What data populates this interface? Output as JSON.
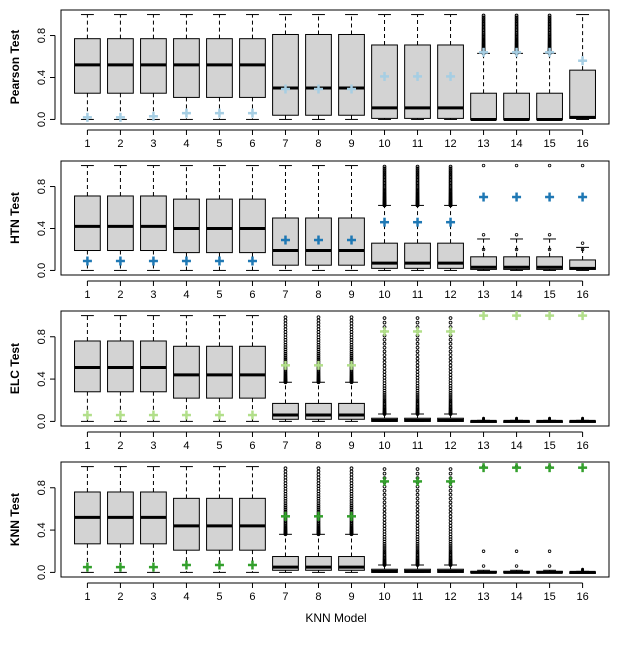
{
  "figure": {
    "xlabel": "KNN Model",
    "colors": {
      "box_fill": "#d3d3d3",
      "outline": "#000000",
      "background": "#ffffff"
    }
  },
  "chart_data": [
    {
      "type": "boxplot",
      "ylabel": "Pearson Test",
      "ylim": [
        0,
        1
      ],
      "yticks": [
        "0.0",
        "0.4",
        "0.8"
      ],
      "ytick_values": [
        0,
        0.4,
        0.8
      ],
      "categories": [
        "1",
        "2",
        "3",
        "4",
        "5",
        "6",
        "7",
        "8",
        "9",
        "10",
        "11",
        "12",
        "13",
        "14",
        "15",
        "16"
      ],
      "marker_color": "#a6cee3",
      "boxes": [
        {
          "whislo": 0,
          "q1": 0.25,
          "med": 0.52,
          "q3": 0.77,
          "whishi": 1,
          "fliers": "none",
          "mark": 0.02
        },
        {
          "whislo": 0,
          "q1": 0.25,
          "med": 0.52,
          "q3": 0.77,
          "whishi": 1,
          "fliers": "none",
          "mark": 0.02
        },
        {
          "whislo": 0,
          "q1": 0.25,
          "med": 0.52,
          "q3": 0.77,
          "whishi": 1,
          "fliers": "none",
          "mark": 0.03
        },
        {
          "whislo": 0,
          "q1": 0.21,
          "med": 0.52,
          "q3": 0.77,
          "whishi": 1,
          "fliers": "none",
          "mark": 0.06
        },
        {
          "whislo": 0,
          "q1": 0.21,
          "med": 0.52,
          "q3": 0.77,
          "whishi": 1,
          "fliers": "none",
          "mark": 0.06
        },
        {
          "whislo": 0,
          "q1": 0.21,
          "med": 0.52,
          "q3": 0.77,
          "whishi": 1,
          "fliers": "none",
          "mark": 0.06
        },
        {
          "whislo": 0,
          "q1": 0.04,
          "med": 0.3,
          "q3": 0.81,
          "whishi": 1,
          "fliers": "none",
          "mark": 0.29
        },
        {
          "whislo": 0,
          "q1": 0.04,
          "med": 0.3,
          "q3": 0.81,
          "whishi": 1,
          "fliers": "none",
          "mark": 0.29
        },
        {
          "whislo": 0,
          "q1": 0.04,
          "med": 0.3,
          "q3": 0.81,
          "whishi": 1,
          "fliers": "none",
          "mark": 0.29
        },
        {
          "whislo": 0,
          "q1": 0.01,
          "med": 0.11,
          "q3": 0.71,
          "whishi": 1,
          "fliers": "none",
          "mark": 0.41
        },
        {
          "whislo": 0,
          "q1": 0.01,
          "med": 0.11,
          "q3": 0.71,
          "whishi": 1,
          "fliers": "none",
          "mark": 0.41
        },
        {
          "whislo": 0,
          "q1": 0.01,
          "med": 0.11,
          "q3": 0.71,
          "whishi": 1,
          "fliers": "none",
          "mark": 0.41
        },
        {
          "whislo": 0,
          "q1": 0,
          "med": 0,
          "q3": 0.25,
          "whishi": 0.63,
          "fliers": "dense",
          "mark": 0.64
        },
        {
          "whislo": 0,
          "q1": 0,
          "med": 0,
          "q3": 0.25,
          "whishi": 0.63,
          "fliers": "dense",
          "mark": 0.64
        },
        {
          "whislo": 0,
          "q1": 0,
          "med": 0,
          "q3": 0.25,
          "whishi": 0.63,
          "fliers": "dense",
          "mark": 0.64
        },
        {
          "whislo": 0,
          "q1": 0.01,
          "med": 0.02,
          "q3": 0.47,
          "whishi": 1,
          "fliers": "none",
          "mark": 0.56
        }
      ]
    },
    {
      "type": "boxplot",
      "ylabel": "HTN Test",
      "ylim": [
        0,
        1
      ],
      "yticks": [
        "0.0",
        "0.4",
        "0.8"
      ],
      "ytick_values": [
        0,
        0.4,
        0.8
      ],
      "categories": [
        "1",
        "2",
        "3",
        "4",
        "5",
        "6",
        "7",
        "8",
        "9",
        "10",
        "11",
        "12",
        "13",
        "14",
        "15",
        "16"
      ],
      "marker_color": "#1f78b4",
      "boxes": [
        {
          "whislo": 0,
          "q1": 0.19,
          "med": 0.42,
          "q3": 0.71,
          "whishi": 1,
          "fliers": "none",
          "mark": 0.09
        },
        {
          "whislo": 0,
          "q1": 0.19,
          "med": 0.42,
          "q3": 0.71,
          "whishi": 1,
          "fliers": "none",
          "mark": 0.09
        },
        {
          "whislo": 0,
          "q1": 0.19,
          "med": 0.42,
          "q3": 0.71,
          "whishi": 1,
          "fliers": "none",
          "mark": 0.09
        },
        {
          "whislo": 0,
          "q1": 0.17,
          "med": 0.4,
          "q3": 0.68,
          "whishi": 1,
          "fliers": "none",
          "mark": 0.09
        },
        {
          "whislo": 0,
          "q1": 0.17,
          "med": 0.4,
          "q3": 0.68,
          "whishi": 1,
          "fliers": "none",
          "mark": 0.09
        },
        {
          "whislo": 0,
          "q1": 0.17,
          "med": 0.4,
          "q3": 0.68,
          "whishi": 1,
          "fliers": "none",
          "mark": 0.09
        },
        {
          "whislo": 0,
          "q1": 0.05,
          "med": 0.19,
          "q3": 0.5,
          "whishi": 1,
          "fliers": "none",
          "mark": 0.29
        },
        {
          "whislo": 0,
          "q1": 0.05,
          "med": 0.19,
          "q3": 0.5,
          "whishi": 1,
          "fliers": "none",
          "mark": 0.29
        },
        {
          "whislo": 0,
          "q1": 0.05,
          "med": 0.19,
          "q3": 0.5,
          "whishi": 1,
          "fliers": "none",
          "mark": 0.29
        },
        {
          "whislo": 0,
          "q1": 0.02,
          "med": 0.07,
          "q3": 0.26,
          "whishi": 0.62,
          "fliers": "dense",
          "mark": 0.46
        },
        {
          "whislo": 0,
          "q1": 0.02,
          "med": 0.07,
          "q3": 0.26,
          "whishi": 0.62,
          "fliers": "dense",
          "mark": 0.46
        },
        {
          "whislo": 0,
          "q1": 0.02,
          "med": 0.07,
          "q3": 0.26,
          "whishi": 0.62,
          "fliers": "dense",
          "mark": 0.46
        },
        {
          "whislo": 0,
          "q1": 0.01,
          "med": 0.03,
          "q3": 0.13,
          "whishi": 0.3,
          "fliers": "sparse",
          "mark": 0.7
        },
        {
          "whislo": 0,
          "q1": 0.01,
          "med": 0.03,
          "q3": 0.13,
          "whishi": 0.3,
          "fliers": "sparse",
          "mark": 0.7
        },
        {
          "whislo": 0,
          "q1": 0.01,
          "med": 0.03,
          "q3": 0.13,
          "whishi": 0.3,
          "fliers": "sparse",
          "mark": 0.7
        },
        {
          "whislo": 0,
          "q1": 0.01,
          "med": 0.02,
          "q3": 0.1,
          "whishi": 0.22,
          "fliers": "sparse",
          "mark": 0.7
        }
      ]
    },
    {
      "type": "boxplot",
      "ylabel": "ELC Test",
      "ylim": [
        0,
        1
      ],
      "yticks": [
        "0.0",
        "0.4",
        "0.8"
      ],
      "ytick_values": [
        0,
        0.4,
        0.8
      ],
      "categories": [
        "1",
        "2",
        "3",
        "4",
        "5",
        "6",
        "7",
        "8",
        "9",
        "10",
        "11",
        "12",
        "13",
        "14",
        "15",
        "16"
      ],
      "marker_color": "#b2df8a",
      "boxes": [
        {
          "whislo": 0,
          "q1": 0.28,
          "med": 0.51,
          "q3": 0.76,
          "whishi": 1,
          "fliers": "none",
          "mark": 0.06
        },
        {
          "whislo": 0,
          "q1": 0.28,
          "med": 0.51,
          "q3": 0.76,
          "whishi": 1,
          "fliers": "none",
          "mark": 0.06
        },
        {
          "whislo": 0,
          "q1": 0.28,
          "med": 0.51,
          "q3": 0.76,
          "whishi": 1,
          "fliers": "none",
          "mark": 0.06
        },
        {
          "whislo": 0,
          "q1": 0.22,
          "med": 0.44,
          "q3": 0.71,
          "whishi": 1,
          "fliers": "none",
          "mark": 0.06
        },
        {
          "whislo": 0,
          "q1": 0.22,
          "med": 0.44,
          "q3": 0.71,
          "whishi": 1,
          "fliers": "none",
          "mark": 0.06
        },
        {
          "whislo": 0,
          "q1": 0.22,
          "med": 0.44,
          "q3": 0.71,
          "whishi": 1,
          "fliers": "none",
          "mark": 0.06
        },
        {
          "whislo": 0,
          "q1": 0.02,
          "med": 0.06,
          "q3": 0.17,
          "whishi": 0.37,
          "fliers": "dense",
          "mark": 0.53
        },
        {
          "whislo": 0,
          "q1": 0.02,
          "med": 0.06,
          "q3": 0.17,
          "whishi": 0.37,
          "fliers": "dense",
          "mark": 0.53
        },
        {
          "whislo": 0,
          "q1": 0.02,
          "med": 0.06,
          "q3": 0.17,
          "whishi": 0.37,
          "fliers": "dense",
          "mark": 0.53
        },
        {
          "whislo": 0,
          "q1": 0,
          "med": 0.01,
          "q3": 0.03,
          "whishi": 0.07,
          "fliers": "dense",
          "mark": 0.85
        },
        {
          "whislo": 0,
          "q1": 0,
          "med": 0.01,
          "q3": 0.03,
          "whishi": 0.07,
          "fliers": "dense",
          "mark": 0.85
        },
        {
          "whislo": 0,
          "q1": 0,
          "med": 0.01,
          "q3": 0.03,
          "whishi": 0.07,
          "fliers": "dense",
          "mark": 0.85
        },
        {
          "whislo": 0,
          "q1": 0,
          "med": 0,
          "q3": 0.005,
          "whishi": 0.01,
          "fliers": "small",
          "mark": 1.0
        },
        {
          "whislo": 0,
          "q1": 0,
          "med": 0,
          "q3": 0.005,
          "whishi": 0.01,
          "fliers": "small",
          "mark": 1.0
        },
        {
          "whislo": 0,
          "q1": 0,
          "med": 0,
          "q3": 0.005,
          "whishi": 0.01,
          "fliers": "small",
          "mark": 1.0
        },
        {
          "whislo": 0,
          "q1": 0,
          "med": 0,
          "q3": 0.005,
          "whishi": 0.01,
          "fliers": "small",
          "mark": 1.0
        }
      ]
    },
    {
      "type": "boxplot",
      "ylabel": "KNN Test",
      "ylim": [
        0,
        1
      ],
      "yticks": [
        "0.0",
        "0.4",
        "0.8"
      ],
      "ytick_values": [
        0,
        0.4,
        0.8
      ],
      "categories": [
        "1",
        "2",
        "3",
        "4",
        "5",
        "6",
        "7",
        "8",
        "9",
        "10",
        "11",
        "12",
        "13",
        "14",
        "15",
        "16"
      ],
      "marker_color": "#33a02c",
      "boxes": [
        {
          "whislo": 0,
          "q1": 0.27,
          "med": 0.52,
          "q3": 0.76,
          "whishi": 1,
          "fliers": "none",
          "mark": 0.05
        },
        {
          "whislo": 0,
          "q1": 0.27,
          "med": 0.52,
          "q3": 0.76,
          "whishi": 1,
          "fliers": "none",
          "mark": 0.05
        },
        {
          "whislo": 0,
          "q1": 0.27,
          "med": 0.52,
          "q3": 0.76,
          "whishi": 1,
          "fliers": "none",
          "mark": 0.05
        },
        {
          "whislo": 0,
          "q1": 0.21,
          "med": 0.44,
          "q3": 0.7,
          "whishi": 1,
          "fliers": "none",
          "mark": 0.07
        },
        {
          "whislo": 0,
          "q1": 0.21,
          "med": 0.44,
          "q3": 0.7,
          "whishi": 1,
          "fliers": "none",
          "mark": 0.07
        },
        {
          "whislo": 0,
          "q1": 0.21,
          "med": 0.44,
          "q3": 0.7,
          "whishi": 1,
          "fliers": "none",
          "mark": 0.07
        },
        {
          "whislo": 0,
          "q1": 0.02,
          "med": 0.05,
          "q3": 0.15,
          "whishi": 0.36,
          "fliers": "dense",
          "mark": 0.53
        },
        {
          "whislo": 0,
          "q1": 0.02,
          "med": 0.05,
          "q3": 0.15,
          "whishi": 0.36,
          "fliers": "dense",
          "mark": 0.53
        },
        {
          "whislo": 0,
          "q1": 0.02,
          "med": 0.05,
          "q3": 0.15,
          "whishi": 0.36,
          "fliers": "dense",
          "mark": 0.53
        },
        {
          "whislo": 0,
          "q1": 0,
          "med": 0.01,
          "q3": 0.03,
          "whishi": 0.07,
          "fliers": "dense",
          "mark": 0.86
        },
        {
          "whislo": 0,
          "q1": 0,
          "med": 0.01,
          "q3": 0.03,
          "whishi": 0.07,
          "fliers": "dense",
          "mark": 0.86
        },
        {
          "whislo": 0,
          "q1": 0,
          "med": 0.01,
          "q3": 0.03,
          "whishi": 0.07,
          "fliers": "dense",
          "mark": 0.86
        },
        {
          "whislo": 0,
          "q1": 0,
          "med": 0,
          "q3": 0.01,
          "whishi": 0.02,
          "fliers": "sparse",
          "mark": 0.99
        },
        {
          "whislo": 0,
          "q1": 0,
          "med": 0,
          "q3": 0.01,
          "whishi": 0.02,
          "fliers": "sparse",
          "mark": 0.99
        },
        {
          "whislo": 0,
          "q1": 0,
          "med": 0,
          "q3": 0.01,
          "whishi": 0.02,
          "fliers": "sparse",
          "mark": 0.99
        },
        {
          "whislo": 0,
          "q1": 0,
          "med": 0,
          "q3": 0.005,
          "whishi": 0.01,
          "fliers": "small",
          "mark": 0.99
        }
      ]
    }
  ]
}
